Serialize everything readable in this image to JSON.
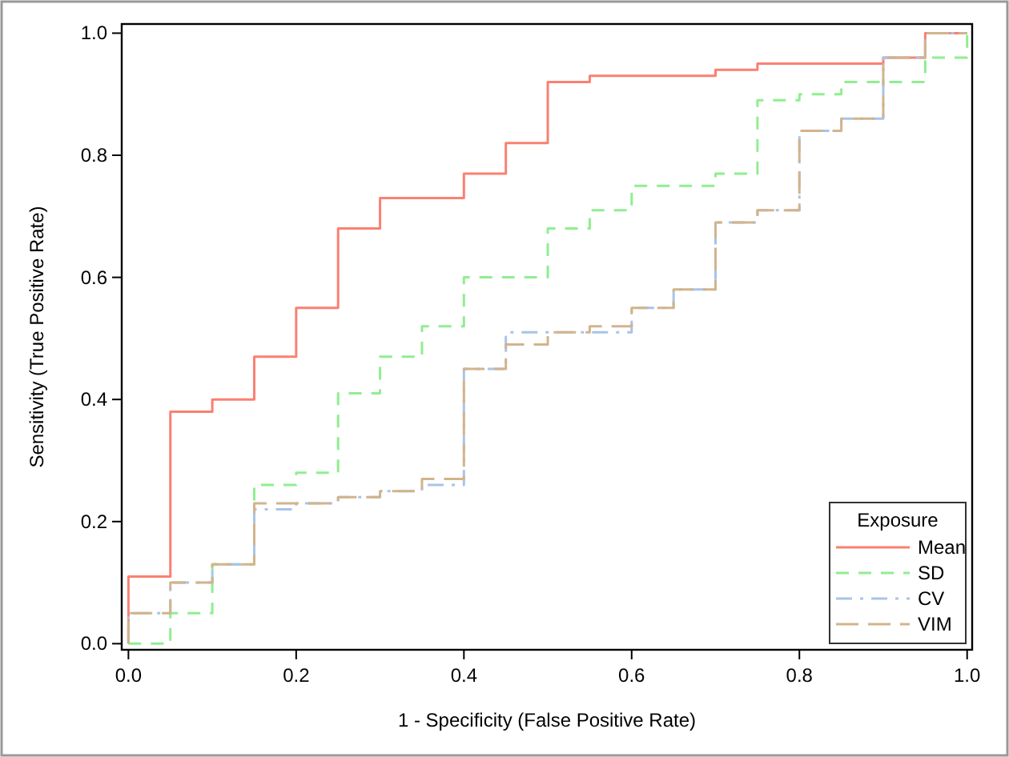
{
  "chart_data": {
    "type": "step",
    "xlabel": "1 - Specificity (False Positive Rate)",
    "ylabel": "Sensitivity (True Positive Rate)",
    "legend_title": "Exposure",
    "legend": "bottom right",
    "grid": false,
    "marker": "none",
    "xlim": [
      -0.008,
      1.006
    ],
    "ylim": [
      -0.01,
      1.015
    ],
    "xticks": [
      {
        "value": 0,
        "label": "0.0"
      },
      {
        "value": 0.2,
        "label": "0.2"
      },
      {
        "value": 0.4,
        "label": "0.4"
      },
      {
        "value": 0.6,
        "label": "0.6"
      },
      {
        "value": 0.8,
        "label": "0.8"
      },
      {
        "value": 1,
        "label": "1.0"
      }
    ],
    "yticks": [
      {
        "value": 0,
        "label": "0.0"
      },
      {
        "value": 0.2,
        "label": "0.2"
      },
      {
        "value": 0.4,
        "label": "0.4"
      },
      {
        "value": 0.6,
        "label": "0.6"
      },
      {
        "value": 0.8,
        "label": "0.8"
      },
      {
        "value": 1,
        "label": "1.0"
      }
    ],
    "series": [
      {
        "name": "Mean",
        "color": "#fa8072",
        "line_style": "solid",
        "x": [
          0,
          0,
          0.05,
          0.1,
          0.15,
          0.2,
          0.25,
          0.3,
          0.4,
          0.45,
          0.5,
          0.55,
          0.7,
          0.75,
          0.9,
          0.95,
          1
        ],
        "values": [
          0,
          0.11,
          0.38,
          0.4,
          0.47,
          0.55,
          0.68,
          0.73,
          0.77,
          0.82,
          0.92,
          0.93,
          0.94,
          0.95,
          0.96,
          1,
          1
        ]
      },
      {
        "name": "SD",
        "color": "#90ee90",
        "line_style": "dashed",
        "x": [
          0,
          0.05,
          0.1,
          0.15,
          0.2,
          0.25,
          0.3,
          0.35,
          0.4,
          0.5,
          0.55,
          0.6,
          0.7,
          0.75,
          0.8,
          0.85,
          0.95,
          1,
          1
        ],
        "values": [
          0,
          0.05,
          0.13,
          0.26,
          0.28,
          0.41,
          0.47,
          0.52,
          0.6,
          0.68,
          0.71,
          0.75,
          0.77,
          0.89,
          0.9,
          0.92,
          0.96,
          0.96,
          1
        ]
      },
      {
        "name": "CV",
        "color": "#a8c4e8",
        "line_style": "dashed",
        "x": [
          0,
          0,
          0.05,
          0.1,
          0.15,
          0.2,
          0.25,
          0.3,
          0.35,
          0.4,
          0.45,
          0.6,
          0.65,
          0.7,
          0.75,
          0.8,
          0.85,
          0.9,
          0.95,
          1
        ],
        "values": [
          0,
          0.05,
          0.1,
          0.13,
          0.22,
          0.23,
          0.24,
          0.25,
          0.26,
          0.45,
          0.51,
          0.55,
          0.58,
          0.69,
          0.71,
          0.84,
          0.86,
          0.96,
          1,
          1
        ]
      },
      {
        "name": "VIM",
        "color": "#d2b48c",
        "line_style": "dashed",
        "x": [
          0,
          0,
          0.05,
          0.1,
          0.15,
          0.25,
          0.3,
          0.35,
          0.4,
          0.45,
          0.5,
          0.55,
          0.6,
          0.65,
          0.7,
          0.75,
          0.8,
          0.85,
          0.9,
          0.95,
          1
        ],
        "values": [
          0,
          0.05,
          0.1,
          0.13,
          0.23,
          0.24,
          0.25,
          0.27,
          0.45,
          0.49,
          0.51,
          0.52,
          0.55,
          0.58,
          0.69,
          0.71,
          0.84,
          0.86,
          0.96,
          1,
          1
        ]
      }
    ]
  }
}
